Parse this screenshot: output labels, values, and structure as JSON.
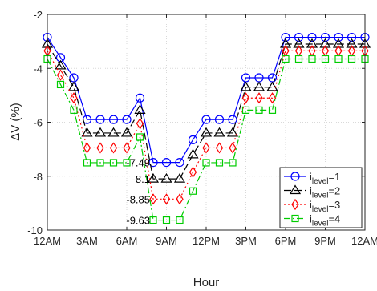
{
  "chart_data": {
    "type": "line",
    "xlabel": "Hour",
    "ylabel": "ΔV (%)",
    "xlim": [
      0,
      24
    ],
    "ylim": [
      -10,
      -2
    ],
    "xticks": [
      {
        "v": 0,
        "label": "12AM"
      },
      {
        "v": 3,
        "label": "3AM"
      },
      {
        "v": 6,
        "label": "6AM"
      },
      {
        "v": 9,
        "label": "9AM"
      },
      {
        "v": 12,
        "label": "12PM"
      },
      {
        "v": 15,
        "label": "3PM"
      },
      {
        "v": 18,
        "label": "6PM"
      },
      {
        "v": 21,
        "label": "9PM"
      },
      {
        "v": 24,
        "label": "12AM"
      }
    ],
    "yticks": [
      {
        "v": -10,
        "label": "-10"
      },
      {
        "v": -8,
        "label": "-8"
      },
      {
        "v": -6,
        "label": "-6"
      },
      {
        "v": -4,
        "label": "-4"
      },
      {
        "v": -2,
        "label": "-2"
      }
    ],
    "grid": true,
    "legend_position": "bottom-right",
    "x": [
      0,
      1,
      2,
      3,
      4,
      5,
      6,
      7,
      8,
      9,
      10,
      11,
      12,
      13,
      14,
      15,
      16,
      17,
      18,
      19,
      20,
      21,
      22,
      23,
      24
    ],
    "series": [
      {
        "name_prefix": "i",
        "name_sub": "level",
        "name_suffix": "=1",
        "color": "#0000ff",
        "marker": "circle",
        "dash": "",
        "values": [
          -2.85,
          -3.6,
          -4.35,
          -5.9,
          -5.9,
          -5.9,
          -5.9,
          -5.1,
          -7.49,
          -7.49,
          -7.49,
          -6.65,
          -5.9,
          -5.9,
          -5.9,
          -4.35,
          -4.35,
          -4.35,
          -2.85,
          -2.85,
          -2.85,
          -2.85,
          -2.85,
          -2.85,
          -2.85
        ]
      },
      {
        "name_prefix": "i",
        "name_sub": "level",
        "name_suffix": "=2",
        "color": "#000000",
        "marker": "triangle",
        "dash": "9,4",
        "values": [
          -3.1,
          -3.9,
          -4.7,
          -6.4,
          -6.4,
          -6.4,
          -6.4,
          -5.55,
          -8.1,
          -8.1,
          -8.1,
          -7.2,
          -6.4,
          -6.4,
          -6.4,
          -4.7,
          -4.7,
          -4.7,
          -3.1,
          -3.1,
          -3.1,
          -3.1,
          -3.1,
          -3.1,
          -3.1
        ]
      },
      {
        "name_prefix": "i",
        "name_sub": "level",
        "name_suffix": "=3",
        "color": "#ff0000",
        "marker": "diamond",
        "dash": "2,3",
        "values": [
          -3.35,
          -4.25,
          -5.1,
          -6.95,
          -6.95,
          -6.95,
          -6.95,
          -6.05,
          -8.85,
          -8.85,
          -8.85,
          -7.85,
          -6.95,
          -6.95,
          -6.95,
          -5.1,
          -5.1,
          -5.1,
          -3.35,
          -3.35,
          -3.35,
          -3.35,
          -3.35,
          -3.35,
          -3.35
        ]
      },
      {
        "name_prefix": "i",
        "name_sub": "level",
        "name_suffix": "=4",
        "color": "#00cc00",
        "marker": "square",
        "dash": "8,3,2,3",
        "values": [
          -3.65,
          -4.6,
          -5.55,
          -7.5,
          -7.5,
          -7.5,
          -7.5,
          -6.55,
          -9.63,
          -9.63,
          -9.63,
          -8.55,
          -7.5,
          -7.5,
          -7.5,
          -5.55,
          -5.55,
          -5.55,
          -3.65,
          -3.65,
          -3.65,
          -3.65,
          -3.65,
          -3.65,
          -3.65
        ]
      }
    ],
    "annotations": [
      {
        "text": "-7.49",
        "x": 8,
        "y": -7.49
      },
      {
        "text": "-8.1",
        "x": 8,
        "y": -8.1
      },
      {
        "text": "-8.85",
        "x": 8,
        "y": -8.85
      },
      {
        "text": "-9.63",
        "x": 8,
        "y": -9.63
      }
    ]
  }
}
